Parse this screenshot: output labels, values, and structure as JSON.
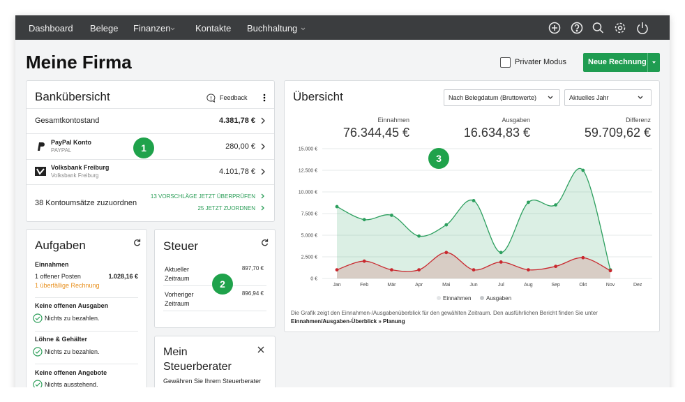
{
  "nav": {
    "items": [
      "Dashboard",
      "Belege",
      "Finanzen",
      "Kontakte",
      "Buchhaltung"
    ]
  },
  "header": {
    "title": "Meine Firma",
    "private_mode": "Privater Modus",
    "new_invoice": "Neue Rechnung"
  },
  "badges": [
    "1",
    "2",
    "3"
  ],
  "bank": {
    "title": "Bankübersicht",
    "feedback": "Feedback",
    "total_label": "Gesamtkontostand",
    "total": "4.381,78 €",
    "accounts": [
      {
        "name": "PayPal Konto",
        "sub": "PAYPAL",
        "amount": "280,00 €"
      },
      {
        "name": "Volksbank Freiburg",
        "sub": "Volksbank Freiburg",
        "amount": "4.101,78 €"
      }
    ],
    "unassigned": "38 Kontoumsätze zuzuordnen",
    "links": [
      "13 VORSCHLÄGE JETZT ÜBERPRÜFEN",
      "25 JETZT ZUORDNEN"
    ]
  },
  "tasks": {
    "title": "Aufgaben",
    "income": {
      "heading": "Einnahmen",
      "open_label": "1 offener Posten",
      "open_amount": "1.028,16 €",
      "overdue": "1 überfällige Rechnung"
    },
    "sections": [
      {
        "heading": "Keine offenen Ausgaben",
        "status": "Nichts zu bezahlen."
      },
      {
        "heading": "Löhne & Gehälter",
        "status": "Nichts zu bezahlen."
      },
      {
        "heading": "Keine offenen Angebote",
        "status": "Nichts ausstehend."
      }
    ]
  },
  "tax": {
    "title": "Steuer",
    "rows": [
      {
        "label": "Aktueller Zeitraum",
        "value": "897,70 €"
      },
      {
        "label": "Vorheriger Zeitraum",
        "value": "896,94 €"
      }
    ]
  },
  "advisor": {
    "title": "Mein Steuerberater",
    "text": "Gewähren Sie Ihrem Steuerberater"
  },
  "overview": {
    "title": "Übersicht",
    "filters": [
      "Nach Belegdatum (Bruttowerte)",
      "Aktuelles Jahr"
    ],
    "stats": [
      {
        "label": "Einnahmen",
        "value": "76.344,45 €"
      },
      {
        "label": "Ausgaben",
        "value": "16.634,83 €"
      },
      {
        "label": "Differenz",
        "value": "59.709,62 €"
      }
    ],
    "note": "Die Grafik zeigt den Einnahmen-/Ausgabenüberblick für den gewählten Zeitraum. Den ausführlichen Bericht finden Sie unter",
    "link": "Einnahmen/Ausgaben-Überblick » Planung"
  },
  "chart_data": {
    "type": "line",
    "categories": [
      "Jan",
      "Feb",
      "Mär",
      "Apr",
      "Mai",
      "Jun",
      "Jul",
      "Aug",
      "Sep",
      "Okt",
      "Nov",
      "Dez"
    ],
    "series": [
      {
        "name": "Einnahmen",
        "color": "#2c9f5e",
        "values": [
          8300,
          6800,
          7300,
          4900,
          6200,
          9000,
          3000,
          8800,
          8500,
          12500,
          1000,
          null
        ]
      },
      {
        "name": "Ausgaben",
        "color": "#c9282e",
        "values": [
          1000,
          2000,
          1000,
          1000,
          3000,
          1000,
          1900,
          1000,
          1400,
          2400,
          900,
          null
        ]
      }
    ],
    "ylim": [
      0,
      15000
    ],
    "yticks": [
      {
        "value": 0,
        "label": "0 €"
      },
      {
        "value": 2500,
        "label": "2.500 €"
      },
      {
        "value": 5000,
        "label": "5.000 €"
      },
      {
        "value": 7500,
        "label": "7.500 €"
      },
      {
        "value": 10000,
        "label": "10.000 €"
      },
      {
        "value": 12500,
        "label": "12.500 €"
      },
      {
        "value": 15000,
        "label": "15.000 €"
      }
    ],
    "grid": true,
    "smooth": true,
    "area": true
  }
}
